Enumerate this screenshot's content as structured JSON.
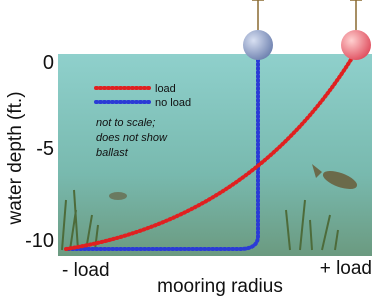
{
  "y_axis": {
    "label": "water depth (ft.)",
    "ticks": [
      "0",
      "-5",
      "-10"
    ]
  },
  "x_axis": {
    "left": "- load",
    "label": "mooring radius",
    "right": "+ load"
  },
  "legend": [
    {
      "label": "load"
    },
    {
      "label": "no load"
    }
  ],
  "note": [
    "not to scale;",
    "does not show",
    "ballast"
  ]
}
